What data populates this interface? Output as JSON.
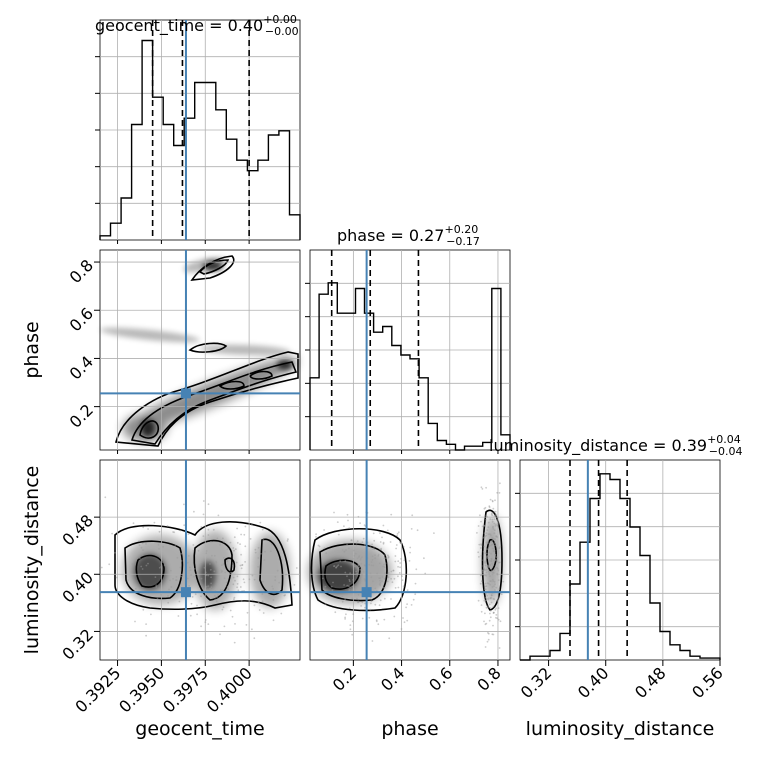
{
  "chart_data": {
    "type": "corner",
    "parameters": [
      {
        "name": "geocent_time",
        "range": [
          0.3915,
          0.4029
        ],
        "truth": 0.3964,
        "quantiles": [
          0.3945,
          0.3962,
          0.4
        ],
        "ticks": [
          "0.3925",
          "0.3950",
          "0.3975",
          "0.4000"
        ],
        "tick_values": [
          0.3925,
          0.395,
          0.3975,
          0.4
        ]
      },
      {
        "name": "phase",
        "range": [
          0.02,
          0.85
        ],
        "truth": 0.255,
        "quantiles": [
          0.11,
          0.27,
          0.47
        ],
        "ticks": [
          "0.2",
          "0.4",
          "0.6",
          "0.8"
        ],
        "tick_values": [
          0.2,
          0.4,
          0.6,
          0.8
        ]
      },
      {
        "name": "luminosity_distance",
        "range": [
          0.28,
          0.56
        ],
        "truth": 0.375,
        "quantiles": [
          0.35,
          0.39,
          0.43
        ],
        "ticks": [
          "0.32",
          "0.40",
          "0.48",
          "0.56"
        ],
        "tick_values": [
          0.32,
          0.4,
          0.48,
          0.56
        ]
      }
    ],
    "titles": [
      {
        "main": "geocent_time = 0.40",
        "sup": "+0.00",
        "sub": "−0.00"
      },
      {
        "main": "phase = 0.27",
        "sup": "+0.20",
        "sub": "−0.17"
      },
      {
        "main": "luminosity_distance = 0.39",
        "sup": "+0.04",
        "sub": "−0.04"
      }
    ],
    "histograms": [
      {
        "param": "geocent_time",
        "values": [
          0.02,
          0.08,
          0.2,
          0.55,
          0.95,
          0.68,
          0.55,
          0.45,
          0.58,
          0.75,
          0.75,
          0.62,
          0.48,
          0.38,
          0.33,
          0.38,
          0.5,
          0.52,
          0.12
        ]
      },
      {
        "param": "phase",
        "values": [
          0.38,
          0.82,
          0.88,
          0.72,
          0.72,
          0.85,
          0.72,
          0.62,
          0.65,
          0.55,
          0.5,
          0.48,
          0.38,
          0.14,
          0.05,
          0.03,
          0.0,
          0.02,
          0.02,
          0.04,
          0.85,
          0.08
        ]
      },
      {
        "param": "luminosity_distance",
        "values": [
          0.0,
          0.02,
          0.02,
          0.05,
          0.14,
          0.4,
          0.62,
          0.85,
          0.98,
          0.95,
          0.85,
          0.7,
          0.55,
          0.3,
          0.15,
          0.08,
          0.05,
          0.02,
          0.01,
          0.01
        ]
      }
    ],
    "grid": true,
    "truth_color": "#4682b4",
    "quantile_style": "dashed"
  }
}
